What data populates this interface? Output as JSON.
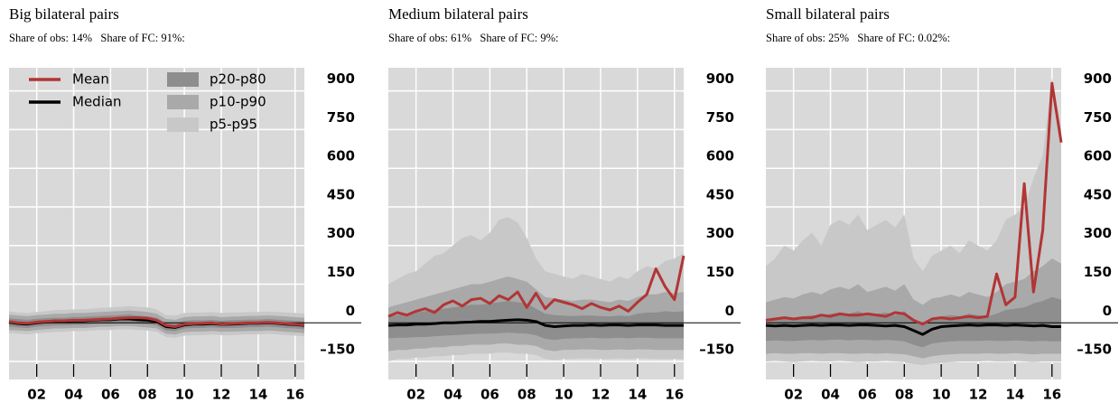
{
  "chart_data": [
    {
      "type": "line",
      "title": "Big bilateral pairs",
      "subtitle": "Share of obs: 14%   Share of FC: 91%:",
      "legend": "upper left",
      "grid": true,
      "x": [
        2000.5,
        2001,
        2001.5,
        2002,
        2002.5,
        2003,
        2003.5,
        2004,
        2004.5,
        2005,
        2005.5,
        2006,
        2006.5,
        2007,
        2007.5,
        2008,
        2008.5,
        2009,
        2009.5,
        2010,
        2010.5,
        2011,
        2011.5,
        2012,
        2012.5,
        2013,
        2013.5,
        2014,
        2014.5,
        2015,
        2015.5,
        2016,
        2016.5
      ],
      "xlim": [
        2000.5,
        2016.5
      ],
      "ylim": [
        -220,
        990
      ],
      "xticks": [
        {
          "value": 2002,
          "label": "02"
        },
        {
          "value": 2004,
          "label": "04"
        },
        {
          "value": 2006,
          "label": "06"
        },
        {
          "value": 2008,
          "label": "08"
        },
        {
          "value": 2010,
          "label": "10"
        },
        {
          "value": 2012,
          "label": "12"
        },
        {
          "value": 2014,
          "label": "14"
        },
        {
          "value": 2016,
          "label": "16"
        }
      ],
      "yticks": [
        {
          "value": -150,
          "label": "–150"
        },
        0,
        150,
        300,
        450,
        600,
        750,
        900
      ],
      "series": [
        {
          "name": "p5-p95",
          "color": "#c8c8c8",
          "lower": [
            -40,
            -42,
            -45,
            -40,
            -38,
            -35,
            -35,
            -32,
            -32,
            -30,
            -28,
            -28,
            -25,
            -25,
            -28,
            -30,
            -35,
            -55,
            -58,
            -50,
            -48,
            -48,
            -45,
            -48,
            -48,
            -46,
            -45,
            -45,
            -43,
            -45,
            -48,
            -50,
            -52
          ],
          "upper": [
            45,
            40,
            38,
            42,
            45,
            50,
            50,
            52,
            52,
            55,
            58,
            60,
            62,
            65,
            62,
            60,
            52,
            30,
            28,
            38,
            40,
            40,
            42,
            38,
            40,
            40,
            42,
            42,
            44,
            42,
            40,
            38,
            35
          ]
        },
        {
          "name": "p10-p90",
          "color": "#a9a9a9",
          "lower": [
            -28,
            -30,
            -32,
            -28,
            -25,
            -22,
            -22,
            -20,
            -20,
            -18,
            -15,
            -15,
            -12,
            -12,
            -15,
            -18,
            -22,
            -42,
            -45,
            -36,
            -34,
            -34,
            -32,
            -35,
            -34,
            -33,
            -32,
            -32,
            -30,
            -32,
            -35,
            -37,
            -40
          ],
          "upper": [
            32,
            28,
            26,
            30,
            32,
            35,
            35,
            38,
            38,
            40,
            42,
            44,
            46,
            48,
            45,
            42,
            35,
            15,
            12,
            22,
            25,
            25,
            27,
            22,
            24,
            25,
            27,
            27,
            29,
            27,
            25,
            22,
            20
          ]
        },
        {
          "name": "p20-p80",
          "color": "#8e8e8e",
          "lower": [
            -15,
            -18,
            -20,
            -15,
            -12,
            -10,
            -10,
            -8,
            -8,
            -5,
            -3,
            -3,
            0,
            0,
            -3,
            -5,
            -10,
            -30,
            -32,
            -22,
            -20,
            -20,
            -18,
            -20,
            -20,
            -19,
            -17,
            -17,
            -15,
            -17,
            -20,
            -22,
            -25
          ],
          "upper": [
            18,
            15,
            12,
            16,
            18,
            20,
            20,
            23,
            23,
            25,
            27,
            28,
            30,
            32,
            28,
            25,
            20,
            0,
            -3,
            8,
            10,
            10,
            12,
            8,
            10,
            11,
            13,
            13,
            15,
            13,
            10,
            8,
            5
          ]
        },
        {
          "name": "Median",
          "color": "#000000",
          "values": [
            2,
            -3,
            -5,
            0,
            3,
            5,
            5,
            8,
            8,
            10,
            12,
            12,
            15,
            15,
            12,
            10,
            5,
            -15,
            -18,
            -8,
            -5,
            -5,
            -3,
            -6,
            -5,
            -4,
            -2,
            -2,
            0,
            -2,
            -5,
            -7,
            -10
          ]
        },
        {
          "name": "Mean",
          "color": "#b23535",
          "values": [
            5,
            0,
            -2,
            3,
            5,
            8,
            8,
            10,
            10,
            12,
            14,
            15,
            18,
            20,
            20,
            18,
            10,
            -10,
            -15,
            -5,
            -3,
            -2,
            0,
            -5,
            -3,
            -2,
            0,
            0,
            2,
            0,
            -3,
            -5,
            -8
          ]
        }
      ]
    },
    {
      "type": "line",
      "title": "Medium bilateral pairs",
      "subtitle": "Share of obs: 61%   Share of FC: 9%:",
      "grid": true,
      "x": [
        2000.5,
        2001,
        2001.5,
        2002,
        2002.5,
        2003,
        2003.5,
        2004,
        2004.5,
        2005,
        2005.5,
        2006,
        2006.5,
        2007,
        2007.5,
        2008,
        2008.5,
        2009,
        2009.5,
        2010,
        2010.5,
        2011,
        2011.5,
        2012,
        2012.5,
        2013,
        2013.5,
        2014,
        2014.5,
        2015,
        2015.5,
        2016,
        2016.5
      ],
      "xlim": [
        2000.5,
        2016.5
      ],
      "ylim": [
        -220,
        990
      ],
      "xticks": [
        {
          "value": 2002,
          "label": "02"
        },
        {
          "value": 2004,
          "label": "04"
        },
        {
          "value": 2006,
          "label": "06"
        },
        {
          "value": 2008,
          "label": "08"
        },
        {
          "value": 2010,
          "label": "10"
        },
        {
          "value": 2012,
          "label": "12"
        },
        {
          "value": 2014,
          "label": "14"
        },
        {
          "value": 2016,
          "label": "16"
        }
      ],
      "yticks": [
        {
          "value": -150,
          "label": "–150"
        },
        0,
        150,
        300,
        450,
        600,
        750,
        900
      ],
      "series": [
        {
          "color": "#c8c8c8",
          "lower": [
            -150,
            -140,
            -140,
            -135,
            -135,
            -130,
            -130,
            -125,
            -125,
            -120,
            -120,
            -120,
            -115,
            -115,
            -120,
            -120,
            -125,
            -140,
            -145,
            -140,
            -140,
            -138,
            -138,
            -140,
            -140,
            -138,
            -140,
            -138,
            -138,
            -140,
            -140,
            -140,
            -140
          ],
          "upper": [
            150,
            170,
            190,
            200,
            230,
            260,
            270,
            300,
            330,
            340,
            320,
            350,
            400,
            410,
            390,
            330,
            250,
            200,
            190,
            180,
            170,
            190,
            180,
            170,
            160,
            180,
            170,
            200,
            220,
            210,
            240,
            250,
            270
          ]
        },
        {
          "color": "#a9a9a9",
          "lower": [
            -110,
            -105,
            -105,
            -100,
            -100,
            -95,
            -95,
            -90,
            -90,
            -85,
            -85,
            -85,
            -80,
            -80,
            -85,
            -85,
            -90,
            -105,
            -110,
            -105,
            -105,
            -103,
            -103,
            -105,
            -105,
            -103,
            -105,
            -103,
            -103,
            -105,
            -105,
            -105,
            -105
          ],
          "upper": [
            60,
            70,
            80,
            90,
            100,
            110,
            120,
            130,
            140,
            150,
            150,
            160,
            170,
            180,
            170,
            160,
            130,
            100,
            95,
            90,
            85,
            90,
            90,
            85,
            80,
            90,
            85,
            100,
            110,
            110,
            120,
            115,
            120
          ]
        },
        {
          "color": "#8e8e8e",
          "lower": [
            -60,
            -58,
            -58,
            -55,
            -55,
            -52,
            -50,
            -48,
            -46,
            -44,
            -42,
            -42,
            -40,
            -38,
            -40,
            -42,
            -48,
            -62,
            -66,
            -62,
            -60,
            -60,
            -58,
            -60,
            -60,
            -58,
            -60,
            -58,
            -58,
            -60,
            -60,
            -60,
            -60
          ],
          "upper": [
            25,
            30,
            35,
            40,
            45,
            50,
            55,
            60,
            65,
            70,
            70,
            75,
            80,
            85,
            80,
            75,
            55,
            35,
            30,
            28,
            26,
            28,
            28,
            26,
            25,
            28,
            26,
            35,
            40,
            40,
            45,
            42,
            45
          ]
        },
        {
          "color": "#000000",
          "values": [
            -10,
            -8,
            -8,
            -5,
            -5,
            -3,
            0,
            0,
            2,
            3,
            5,
            5,
            8,
            10,
            12,
            10,
            5,
            -10,
            -15,
            -12,
            -10,
            -10,
            -8,
            -10,
            -8,
            -8,
            -10,
            -8,
            -8,
            -8,
            -10,
            -10,
            -10
          ]
        },
        {
          "color": "#b23535",
          "values": [
            25,
            40,
            30,
            45,
            55,
            40,
            70,
            85,
            65,
            90,
            95,
            75,
            105,
            90,
            120,
            60,
            115,
            55,
            90,
            80,
            70,
            55,
            75,
            60,
            50,
            65,
            45,
            80,
            110,
            210,
            140,
            90,
            260
          ]
        }
      ]
    },
    {
      "type": "line",
      "title": "Small bilateral pairs",
      "subtitle": "Share of obs: 25%   Share of FC: 0.02%:",
      "grid": true,
      "x": [
        2000.5,
        2001,
        2001.5,
        2002,
        2002.5,
        2003,
        2003.5,
        2004,
        2004.5,
        2005,
        2005.5,
        2006,
        2006.5,
        2007,
        2007.5,
        2008,
        2008.5,
        2009,
        2009.5,
        2010,
        2010.5,
        2011,
        2011.5,
        2012,
        2012.5,
        2013,
        2013.5,
        2014,
        2014.5,
        2015,
        2015.5,
        2016,
        2016.5
      ],
      "xlim": [
        2000.5,
        2016.5
      ],
      "ylim": [
        -220,
        990
      ],
      "xticks": [
        {
          "value": 2002,
          "label": "02"
        },
        {
          "value": 2004,
          "label": "04"
        },
        {
          "value": 2006,
          "label": "06"
        },
        {
          "value": 2008,
          "label": "08"
        },
        {
          "value": 2010,
          "label": "10"
        },
        {
          "value": 2012,
          "label": "12"
        },
        {
          "value": 2014,
          "label": "14"
        },
        {
          "value": 2016,
          "label": "16"
        }
      ],
      "yticks": [
        {
          "value": -150,
          "label": "–150"
        },
        0,
        150,
        300,
        450,
        600,
        750,
        900
      ],
      "series": [
        {
          "color": "#c8c8c8",
          "lower": [
            -150,
            -148,
            -150,
            -152,
            -150,
            -148,
            -150,
            -150,
            -148,
            -150,
            -152,
            -150,
            -150,
            -148,
            -150,
            -152,
            -160,
            -165,
            -158,
            -155,
            -152,
            -150,
            -150,
            -150,
            -148,
            -150,
            -150,
            -148,
            -150,
            -152,
            -150,
            -150,
            -150
          ],
          "upper": [
            220,
            250,
            300,
            280,
            320,
            350,
            300,
            380,
            400,
            380,
            420,
            360,
            380,
            400,
            370,
            420,
            250,
            200,
            260,
            280,
            300,
            270,
            320,
            300,
            280,
            320,
            400,
            420,
            450,
            560,
            650,
            950,
            750
          ]
        },
        {
          "color": "#a9a9a9",
          "lower": [
            -120,
            -118,
            -120,
            -120,
            -118,
            -118,
            -120,
            -118,
            -118,
            -120,
            -120,
            -118,
            -120,
            -118,
            -120,
            -122,
            -130,
            -138,
            -130,
            -125,
            -122,
            -120,
            -120,
            -120,
            -118,
            -120,
            -120,
            -118,
            -120,
            -122,
            -120,
            -120,
            -120
          ],
          "upper": [
            80,
            90,
            100,
            95,
            110,
            120,
            110,
            130,
            140,
            130,
            150,
            120,
            130,
            140,
            125,
            150,
            90,
            70,
            95,
            100,
            110,
            100,
            120,
            110,
            100,
            120,
            150,
            160,
            170,
            200,
            220,
            250,
            230
          ]
        },
        {
          "color": "#8e8e8e",
          "lower": [
            -70,
            -68,
            -70,
            -70,
            -68,
            -66,
            -68,
            -66,
            -65,
            -68,
            -66,
            -66,
            -68,
            -66,
            -68,
            -72,
            -85,
            -95,
            -80,
            -75,
            -72,
            -70,
            -70,
            -70,
            -68,
            -70,
            -70,
            -68,
            -70,
            -72,
            -70,
            -72,
            -72
          ],
          "upper": [
            10,
            15,
            20,
            18,
            25,
            30,
            25,
            35,
            40,
            35,
            45,
            30,
            35,
            40,
            30,
            45,
            10,
            -5,
            20,
            25,
            30,
            25,
            35,
            30,
            25,
            35,
            50,
            55,
            60,
            75,
            85,
            100,
            90
          ]
        },
        {
          "color": "#000000",
          "values": [
            -10,
            -12,
            -10,
            -12,
            -10,
            -8,
            -10,
            -8,
            -8,
            -10,
            -8,
            -8,
            -10,
            -12,
            -10,
            -15,
            -30,
            -45,
            -25,
            -15,
            -12,
            -10,
            -8,
            -10,
            -8,
            -8,
            -10,
            -8,
            -10,
            -12,
            -10,
            -15,
            -15
          ]
        },
        {
          "color": "#b23535",
          "values": [
            10,
            15,
            20,
            15,
            20,
            20,
            30,
            25,
            35,
            30,
            30,
            35,
            30,
            25,
            40,
            35,
            10,
            -5,
            15,
            20,
            15,
            20,
            25,
            20,
            25,
            190,
            70,
            100,
            540,
            120,
            360,
            930,
            700
          ]
        }
      ]
    }
  ]
}
